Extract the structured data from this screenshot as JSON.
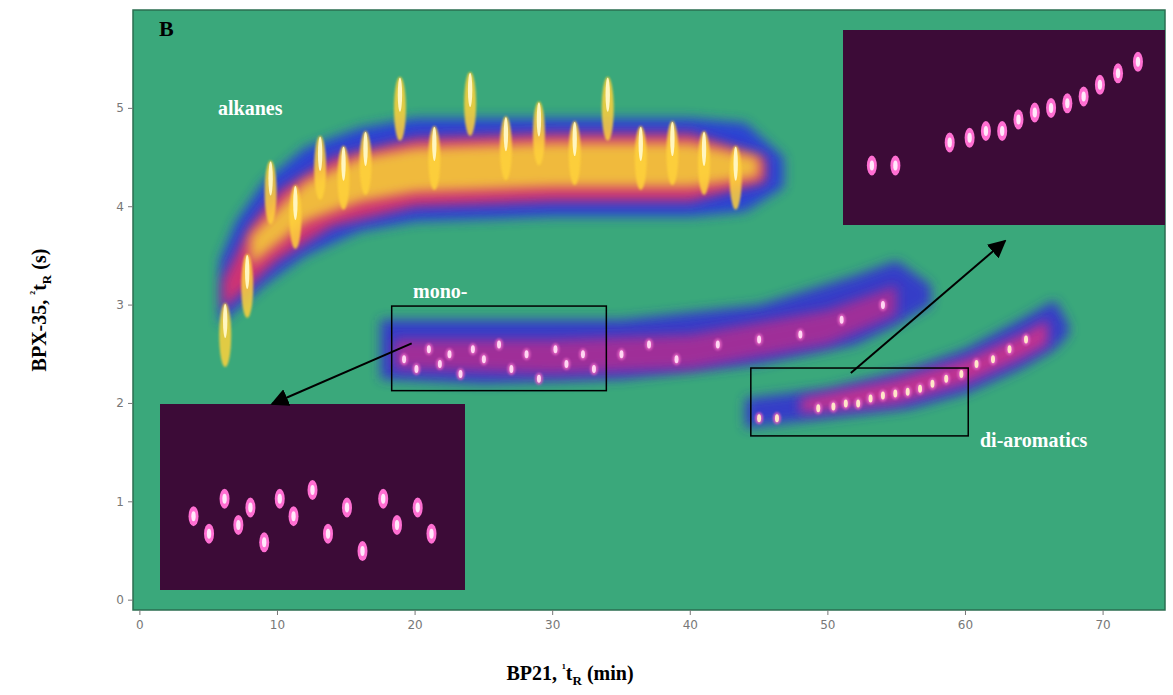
{
  "chart_data": {
    "type": "scatter",
    "panel": "B",
    "x_label": "BP21, ¹tR (min)",
    "y_label": "BPX-35, ²tR (s)",
    "xlim": [
      -0.5,
      74.5
    ],
    "ylim": [
      -0.1,
      6.0
    ],
    "xticks": [
      0,
      10,
      20,
      30,
      40,
      50,
      60,
      70
    ],
    "yticks": [
      0,
      1,
      2,
      3,
      4,
      5
    ],
    "grid": false,
    "series": [
      {
        "name": "alkanes",
        "type": "scatter",
        "color": "#fff6c0",
        "x": [
          6.2,
          7.8,
          9.5,
          11.3,
          13.1,
          14.8,
          16.4,
          18.9,
          21.4,
          24.0,
          26.6,
          29.0,
          31.6,
          34.0,
          36.4,
          38.7,
          41.0,
          43.3
        ],
        "values": [
          3.0,
          3.5,
          4.45,
          4.2,
          4.7,
          4.6,
          4.75,
          5.3,
          4.8,
          5.35,
          4.9,
          5.05,
          4.85,
          5.3,
          4.8,
          4.85,
          4.75,
          4.6
        ]
      },
      {
        "name": "mono-",
        "type": "scatter",
        "color": "#ffd6f2",
        "x": [
          19.2,
          20.1,
          21.0,
          21.8,
          22.5,
          23.3,
          24.2,
          25.0,
          26.1,
          27.0,
          28.1,
          29.0,
          30.2,
          31.0,
          32.2,
          33.0,
          35,
          37,
          39,
          42,
          45,
          48,
          51,
          54
        ],
        "values": [
          2.45,
          2.35,
          2.55,
          2.4,
          2.5,
          2.3,
          2.55,
          2.45,
          2.6,
          2.35,
          2.5,
          2.25,
          2.55,
          2.4,
          2.5,
          2.35,
          2.5,
          2.6,
          2.45,
          2.6,
          2.65,
          2.7,
          2.85,
          3.0
        ]
      },
      {
        "name": "di-aromatics",
        "type": "scatter",
        "color": "#ffe6c8",
        "x": [
          45.0,
          46.3,
          49.3,
          50.4,
          51.3,
          52.2,
          53.1,
          54.0,
          54.9,
          55.8,
          56.7,
          57.6,
          58.6,
          59.7,
          60.8,
          62.0,
          63.2,
          64.4
        ],
        "values": [
          1.85,
          1.85,
          1.95,
          1.97,
          2.0,
          2.0,
          2.05,
          2.08,
          2.1,
          2.12,
          2.15,
          2.2,
          2.25,
          2.3,
          2.4,
          2.45,
          2.55,
          2.65
        ]
      }
    ],
    "bands": [
      {
        "color": "#2c3cd8",
        "x": [
          5.8,
          7,
          9,
          12,
          16,
          20,
          30,
          40,
          44,
          46.8
        ],
        "upper": [
          3.45,
          3.85,
          4.25,
          4.6,
          4.8,
          4.9,
          4.9,
          4.9,
          4.85,
          4.5
        ],
        "lower": [
          2.8,
          2.95,
          3.2,
          3.5,
          3.75,
          3.85,
          3.9,
          3.9,
          3.95,
          4.2
        ]
      },
      {
        "color": "#d8306e",
        "x": [
          6,
          8,
          10,
          14,
          20,
          30,
          40,
          45.5
        ],
        "upper": [
          3.25,
          3.8,
          4.15,
          4.5,
          4.7,
          4.75,
          4.75,
          4.5
        ],
        "lower": [
          2.95,
          3.2,
          3.45,
          3.8,
          4.0,
          4.05,
          4.05,
          4.25
        ]
      },
      {
        "color": "#f2c23a",
        "x": [
          8,
          12,
          16,
          20,
          30,
          40,
          45
        ],
        "upper": [
          3.7,
          4.25,
          4.5,
          4.6,
          4.65,
          4.65,
          4.5
        ],
        "lower": [
          3.4,
          3.85,
          4.05,
          4.15,
          4.2,
          4.2,
          4.3
        ]
      },
      {
        "color": "#3438cc",
        "x": [
          17.5,
          25,
          35,
          45,
          52,
          55,
          57.5
        ],
        "upper": [
          2.85,
          2.85,
          2.85,
          3.0,
          3.3,
          3.45,
          3.2
        ],
        "lower": [
          2.25,
          2.2,
          2.25,
          2.4,
          2.6,
          2.8,
          3.0
        ]
      },
      {
        "color": "#a52e96",
        "x": [
          18.5,
          30,
          40,
          50,
          55
        ],
        "upper": [
          2.65,
          2.65,
          2.7,
          2.95,
          3.2
        ],
        "lower": [
          2.35,
          2.3,
          2.35,
          2.6,
          2.9
        ]
      },
      {
        "color": "#3438cc",
        "x": [
          44,
          50,
          56,
          60,
          64,
          66.5,
          67.5
        ],
        "upper": [
          2.05,
          2.15,
          2.35,
          2.55,
          2.85,
          3.05,
          2.8
        ],
        "lower": [
          1.75,
          1.85,
          1.95,
          2.1,
          2.35,
          2.55,
          2.7
        ]
      },
      {
        "color": "#c8308e",
        "x": [
          48,
          55,
          60,
          64,
          66
        ],
        "upper": [
          2.05,
          2.25,
          2.45,
          2.7,
          2.85
        ],
        "lower": [
          1.9,
          2.0,
          2.2,
          2.45,
          2.6
        ]
      }
    ],
    "zoom_boxes": [
      {
        "xlim": [
          18.3,
          33.9
        ],
        "ylim": [
          2.13,
          2.99
        ]
      },
      {
        "xlim": [
          44.4,
          60.2
        ],
        "ylim": [
          1.67,
          2.36
        ]
      }
    ]
  }
}
